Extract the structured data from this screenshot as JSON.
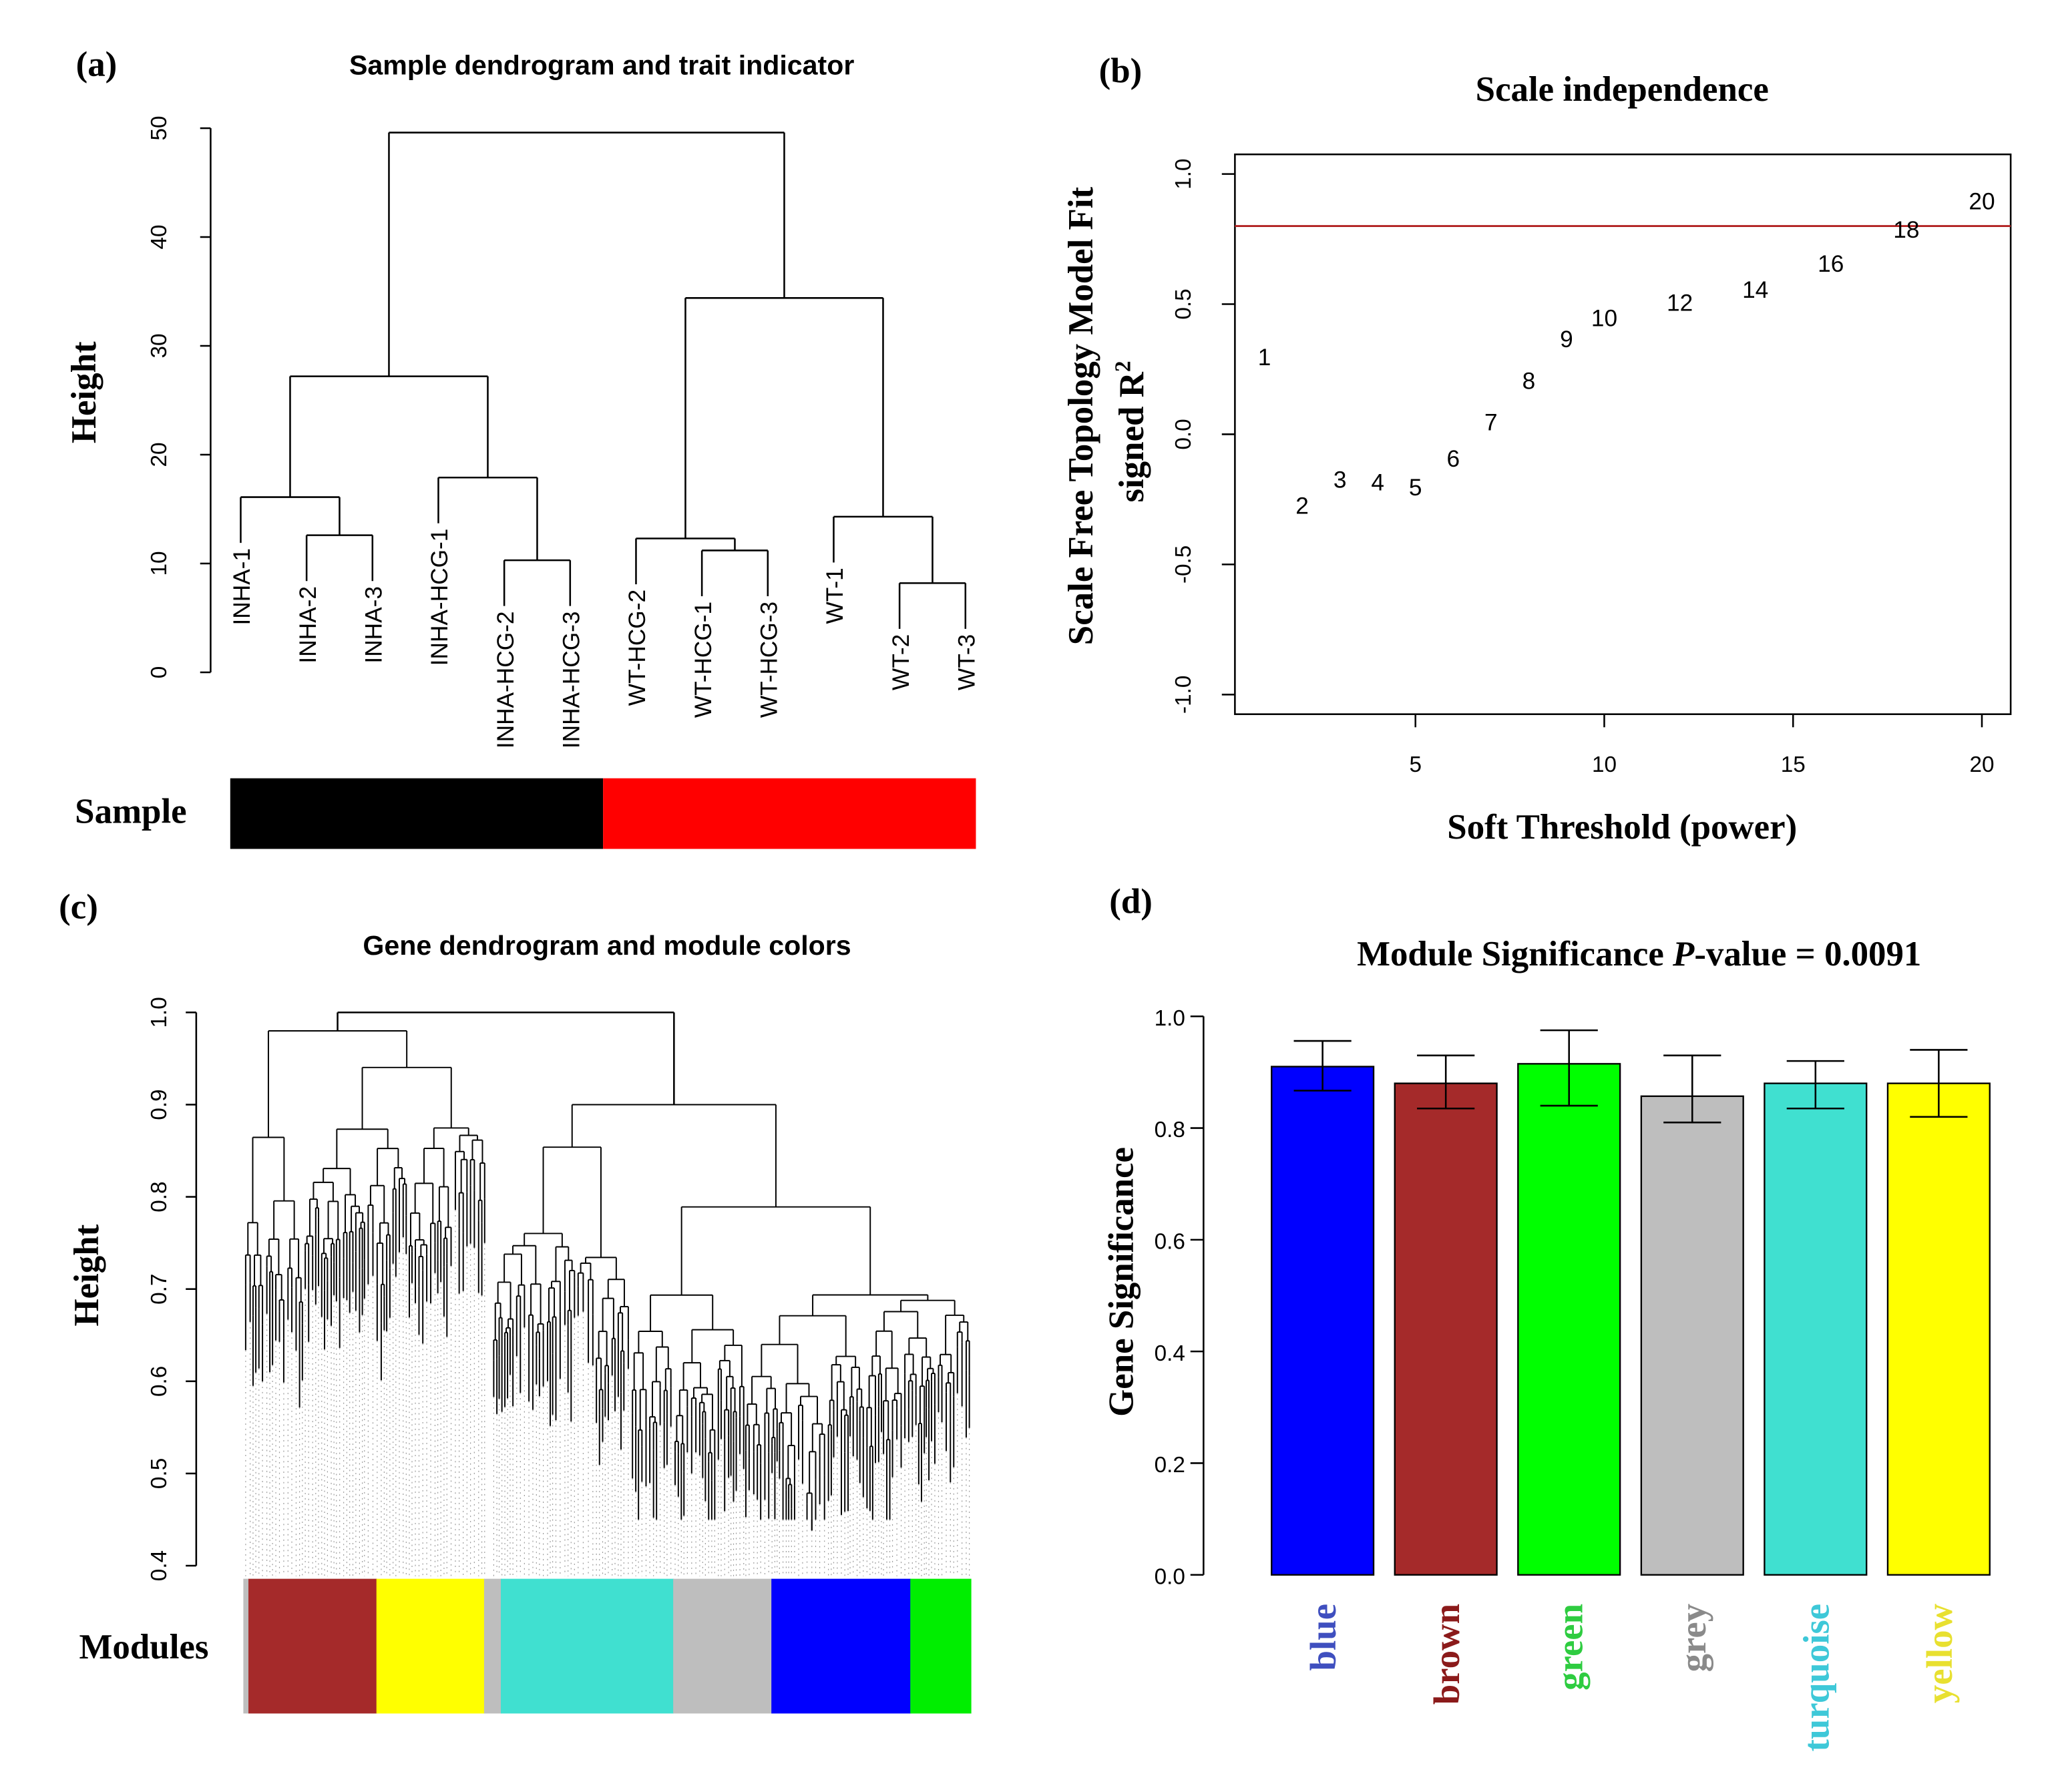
{
  "chart_data": [
    {
      "panel": "(a)",
      "type": "dendrogram",
      "title": "Sample dendrogram and trait indicator",
      "ylabel": "Height",
      "ylim": [
        0,
        50
      ],
      "yticks": [
        "0",
        "10",
        "20",
        "30",
        "40",
        "50"
      ],
      "tree": {
        "h": 49.6,
        "children": [
          {
            "h": 27.2,
            "children": [
              {
                "h": 16.1,
                "children": [
                  "INHA-1",
                  {
                    "h": 12.6,
                    "children": [
                      "INHA-2",
                      "INHA-3"
                    ]
                  }
                ]
              },
              {
                "h": 17.9,
                "children": [
                  "INHA-HCG-1",
                  {
                    "h": 10.3,
                    "children": [
                      "INHA-HCG-2",
                      "INHA-HCG-3"
                    ]
                  }
                ]
              }
            ]
          },
          {
            "h": 34.4,
            "children": [
              {
                "h": 12.3,
                "children": [
                  "WT-HCG-2",
                  {
                    "h": 11.2,
                    "children": [
                      "WT-HCG-1",
                      "WT-HCG-3"
                    ]
                  }
                ]
              },
              {
                "h": 14.3,
                "children": [
                  "WT-1",
                  {
                    "h": 8.2,
                    "children": [
                      "WT-2",
                      "WT-3"
                    ]
                  }
                ]
              }
            ]
          }
        ]
      },
      "trait": {
        "label": "Sample",
        "segments": [
          {
            "color": "#000000",
            "count": 6
          },
          {
            "color": "#ff0000",
            "count": 6
          }
        ]
      }
    },
    {
      "panel": "(b)",
      "type": "scatter",
      "title": "Scale independence",
      "xlabel": "Soft Threshold (power)",
      "ylabel_line1": "Scale Free Topology Model Fit",
      "ylabel_line2": "signed R",
      "ylabel_sup": "2",
      "xlim": [
        0.3,
        20.8
      ],
      "ylim": [
        -1.05,
        1.08
      ],
      "xticks": [
        "5",
        "10",
        "15",
        "20"
      ],
      "yticks": [
        "-1.0",
        "-0.5",
        "0.0",
        "0.5",
        "1.0"
      ],
      "threshold": 0.8,
      "threshold_color": "#b22222",
      "points": [
        {
          "x": 1,
          "y": 0.3,
          "label": "1"
        },
        {
          "x": 2,
          "y": -0.27,
          "label": "2"
        },
        {
          "x": 3,
          "y": -0.17,
          "label": "3"
        },
        {
          "x": 4,
          "y": -0.18,
          "label": "4"
        },
        {
          "x": 5,
          "y": -0.2,
          "label": "5"
        },
        {
          "x": 6,
          "y": -0.09,
          "label": "6"
        },
        {
          "x": 7,
          "y": 0.05,
          "label": "7"
        },
        {
          "x": 8,
          "y": 0.21,
          "label": "8"
        },
        {
          "x": 9,
          "y": 0.37,
          "label": "9"
        },
        {
          "x": 10,
          "y": 0.45,
          "label": "10"
        },
        {
          "x": 12,
          "y": 0.51,
          "label": "12"
        },
        {
          "x": 14,
          "y": 0.56,
          "label": "14"
        },
        {
          "x": 16,
          "y": 0.66,
          "label": "16"
        },
        {
          "x": 18,
          "y": 0.79,
          "label": "18"
        },
        {
          "x": 20,
          "y": 0.9,
          "label": "20"
        }
      ]
    },
    {
      "panel": "(c)",
      "type": "dendrogram",
      "title": "Gene dendrogram and module colors",
      "ylabel": "Height",
      "ylim": [
        0.4,
        1.0
      ],
      "yticks": [
        "0.4",
        "0.5",
        "0.6",
        "0.7",
        "0.8",
        "0.9",
        "1.0"
      ],
      "modules_label": "Modules",
      "modules": [
        {
          "color": "#bebebe",
          "share": 0.007
        },
        {
          "color": "#a52a2a",
          "share": 0.176
        },
        {
          "color": "#ffff00",
          "share": 0.148
        },
        {
          "color": "#bebebe",
          "share": 0.023
        },
        {
          "color": "#40e0d0",
          "share": 0.237
        },
        {
          "color": "#bebebe",
          "share": 0.135
        },
        {
          "color": "#0000ff",
          "share": 0.191
        },
        {
          "color": "#00ee00",
          "share": 0.083
        }
      ]
    },
    {
      "panel": "(d)",
      "type": "bar",
      "title_main": "Module Significance ",
      "title_p": "P",
      "title_rest": "-value = 0.0091",
      "ylabel": "Gene Significance",
      "ylim": [
        0,
        1.0
      ],
      "yticks": [
        "0.0",
        "0.2",
        "0.4",
        "0.6",
        "0.8",
        "1.0"
      ],
      "categories": [
        "blue",
        "brown",
        "green",
        "grey",
        "turquoise",
        "yellow"
      ],
      "values": [
        0.91,
        0.88,
        0.915,
        0.857,
        0.88,
        0.88
      ],
      "err_low": [
        0.867,
        0.835,
        0.84,
        0.81,
        0.835,
        0.82
      ],
      "err_high": [
        0.956,
        0.93,
        0.975,
        0.93,
        0.92,
        0.94
      ],
      "colors": [
        "#0000ff",
        "#a52a2a",
        "#00ff00",
        "#bebebe",
        "#40e0d0",
        "#ffff00"
      ],
      "label_colors": [
        "#3f4fbf",
        "#8b1a1a",
        "#2ecc40",
        "#8a8a8a",
        "#3ec8d8",
        "#e8e030"
      ]
    }
  ]
}
